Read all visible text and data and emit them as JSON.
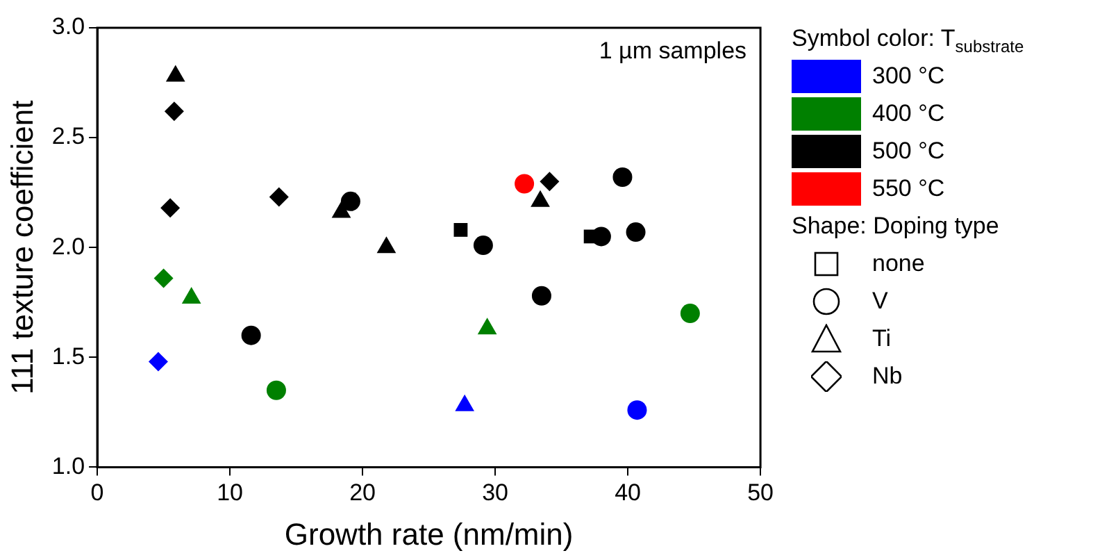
{
  "chart_data": {
    "type": "scatter",
    "xlabel": "Growth rate (nm/min)",
    "ylabel": "111 texture coefficient",
    "legend_title": "Symbol color: T$_{substrate}$",
    "legend": "right",
    "grid": false,
    "xlim": [
      0,
      50
    ],
    "xticks": [
      0,
      10,
      20,
      30,
      40,
      50
    ],
    "ylim": [
      1,
      3
    ],
    "yticks": [
      {
        "value": 1,
        "label": "1.0"
      },
      {
        "value": 1.5,
        "label": "1.5"
      },
      {
        "value": 2,
        "label": "2.0"
      },
      {
        "value": 2.5,
        "label": "2.5"
      },
      {
        "value": 3,
        "label": "3.0"
      }
    ],
    "annotations": [
      "1 µm samples",
      "Shape: Doping type",
      "none",
      "V",
      "Ti",
      "Nb"
    ],
    "series": [
      {
        "name": "300 °C",
        "color": "#0000ff",
        "marker": "diamond",
        "x": [
          4.6
        ],
        "values": [
          1.48
        ]
      },
      {
        "color": "#0000ff",
        "marker": "triangle",
        "x": [
          27.7
        ],
        "values": [
          1.28
        ]
      },
      {
        "color": "#0000ff",
        "marker": "circle",
        "x": [
          40.7
        ],
        "values": [
          1.26
        ]
      },
      {
        "name": "400 °C",
        "color": "#008000",
        "marker": "diamond",
        "x": [
          5.0
        ],
        "values": [
          1.86
        ]
      },
      {
        "color": "#008000",
        "marker": "triangle",
        "x": [
          7.1,
          29.4
        ],
        "values": [
          1.77,
          1.63
        ]
      },
      {
        "color": "#008000",
        "marker": "circle",
        "x": [
          13.5,
          44.7
        ],
        "values": [
          1.35,
          1.7
        ]
      },
      {
        "name": "500 °C",
        "color": "#000000",
        "marker": "triangle",
        "x": [
          5.9,
          18.4,
          21.8,
          33.4
        ],
        "values": [
          2.78,
          2.16,
          2.0,
          2.21
        ]
      },
      {
        "color": "#000000",
        "marker": "diamond",
        "x": [
          5.8,
          5.5,
          13.7,
          34.1
        ],
        "values": [
          2.62,
          2.18,
          2.23,
          2.3
        ]
      },
      {
        "color": "#000000",
        "marker": "circle",
        "x": [
          11.6,
          19.1,
          29.1,
          33.5,
          38.0,
          39.6,
          40.6
        ],
        "values": [
          1.6,
          2.21,
          2.01,
          1.78,
          2.05,
          2.32,
          2.07
        ]
      },
      {
        "color": "#000000",
        "marker": "square",
        "x": [
          27.4,
          37.2
        ],
        "values": [
          2.08,
          2.05
        ]
      },
      {
        "name": "550 °C",
        "color": "#ff0000",
        "marker": "circle",
        "x": [
          32.2
        ],
        "values": [
          2.29
        ]
      }
    ]
  }
}
